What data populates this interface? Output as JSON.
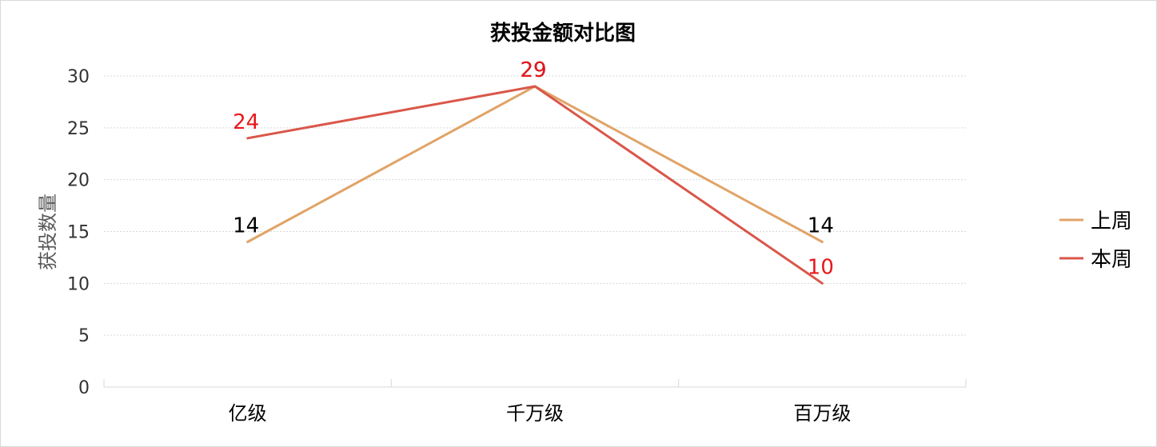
{
  "chart_data": {
    "type": "line",
    "title": "获投金额对比图",
    "xlabel": "",
    "ylabel": "获投数量",
    "categories": [
      "亿级",
      "千万级",
      "百万级"
    ],
    "ylim": [
      0,
      30
    ],
    "yticks": [
      0,
      5,
      10,
      15,
      20,
      25,
      30
    ],
    "grid": true,
    "legend": "right",
    "series": [
      {
        "name": "上周",
        "values": [
          14,
          29,
          14
        ],
        "color": "#E0A468",
        "label_color": "#000000"
      },
      {
        "name": "本周",
        "values": [
          24,
          29,
          10
        ],
        "color": "#D9574A",
        "label_color": "#E8171A"
      }
    ]
  }
}
